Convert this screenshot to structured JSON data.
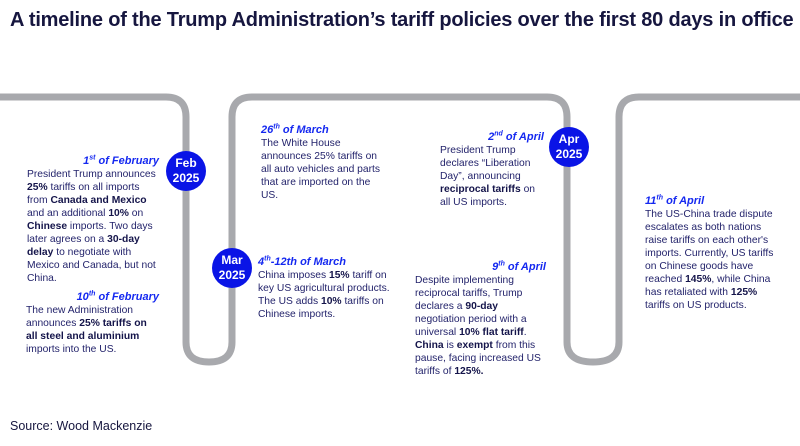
{
  "title": "A timeline of the Trump Administration’s tariff policies over the first 80 days in office",
  "source": "Source: Wood Mackenzie",
  "colors": {
    "path": "#a8a9ad",
    "marker": "#0a14e6",
    "date": "#1428f0",
    "text": "#23236b"
  },
  "markers": [
    {
      "month": "Feb",
      "year": "2025"
    },
    {
      "month": "Mar",
      "year": "2025"
    },
    {
      "month": "Apr",
      "year": "2025"
    }
  ],
  "events": [
    {
      "day": "1",
      "sup": "st",
      "rest": " of February",
      "body": [
        {
          "t": "President Trump announces "
        },
        {
          "t": "25%",
          "b": true
        },
        {
          "t": " tariffs on all imports from "
        },
        {
          "t": "Canada and Mexico",
          "b": true
        },
        {
          "t": " and an additional "
        },
        {
          "t": "10%",
          "b": true
        },
        {
          "t": " on "
        },
        {
          "t": "Chinese",
          "b": true
        },
        {
          "t": " imports. Two days later agrees on a "
        },
        {
          "t": "30-day delay",
          "b": true
        },
        {
          "t": " to negotiate with Mexico and Canada, but not China."
        }
      ]
    },
    {
      "day": "10",
      "sup": "th",
      "rest": " of February",
      "body": [
        {
          "t": "The new Administration announces "
        },
        {
          "t": "25% tariffs on all steel and aluminium",
          "b": true
        },
        {
          "t": " imports into the US."
        }
      ]
    },
    {
      "day": "26",
      "sup": "th",
      "rest": " of March",
      "body": [
        {
          "t": "The White House announces 25% tariffs on all auto vehicles and parts that are imported on the US."
        }
      ]
    },
    {
      "day": "4",
      "sup": "th",
      "rest": "-12th of March",
      "body": [
        {
          "t": "China imposes "
        },
        {
          "t": "15%",
          "b": true
        },
        {
          "t": " tariff on key US agricultural products. The US adds "
        },
        {
          "t": "10%",
          "b": true
        },
        {
          "t": " tariffs on Chinese imports."
        }
      ]
    },
    {
      "day": "2",
      "sup": "nd",
      "rest": " of April",
      "body": [
        {
          "t": "President Trump declares “Liberation Day”, announcing "
        },
        {
          "t": "reciprocal tariffs",
          "b": true
        },
        {
          "t": " on all US imports."
        }
      ]
    },
    {
      "day": "9",
      "sup": "th",
      "rest": " of April",
      "body": [
        {
          "t": "Despite implementing reciprocal tariffs, Trump declares a "
        },
        {
          "t": "90-day",
          "b": true
        },
        {
          "t": " negotiation period with a universal "
        },
        {
          "t": "10% flat tariff",
          "b": true
        },
        {
          "t": ". "
        },
        {
          "t": "China",
          "b": true
        },
        {
          "t": " is "
        },
        {
          "t": "exempt",
          "b": true
        },
        {
          "t": " from this pause, facing increased US tariffs of "
        },
        {
          "t": "125%.",
          "b": true
        }
      ]
    },
    {
      "day": "11",
      "sup": "th",
      "rest": " of April",
      "body": [
        {
          "t": "The US-China trade dispute escalates as both nations raise tariffs on each other's imports. Currently, US tariffs on Chinese goods have reached "
        },
        {
          "t": "145%",
          "b": true
        },
        {
          "t": ", while China has retaliated with "
        },
        {
          "t": "125%",
          "b": true
        },
        {
          "t": " tariffs on US products."
        }
      ]
    }
  ]
}
